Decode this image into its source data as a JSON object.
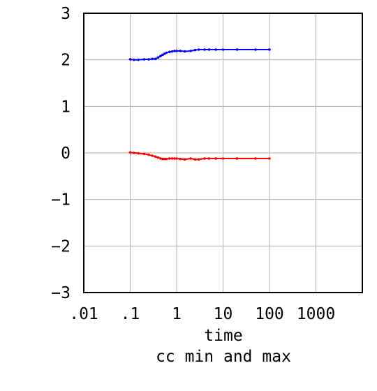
{
  "chart_data": {
    "type": "line",
    "title": "cc min and max",
    "xlabel": "time",
    "ylabel": "",
    "xscale": "log",
    "xlim": [
      0.01,
      10000
    ],
    "ylim": [
      -3,
      3
    ],
    "grid": true,
    "legend": "none",
    "xticks": [
      0.01,
      0.1,
      1,
      10,
      100,
      1000
    ],
    "xtick_labels": [
      ".01",
      ".1",
      "1",
      "10",
      "100",
      "1000"
    ],
    "yticks": [
      3,
      2,
      1,
      0,
      -1,
      -2,
      -3
    ],
    "ytick_labels": [
      "3",
      "2",
      "1",
      "0",
      "−1",
      "−2",
      "−3"
    ],
    "series": [
      {
        "color": "#0000ff",
        "x": [
          0.1,
          0.12,
          0.15,
          0.2,
          0.25,
          0.3,
          0.35,
          0.4,
          0.45,
          0.5,
          0.55,
          0.6,
          0.7,
          0.8,
          0.9,
          1.0,
          1.2,
          1.5,
          2.0,
          2.5,
          3.0,
          4.0,
          5.0,
          7.0,
          10,
          20,
          50,
          100
        ],
        "y": [
          2.01,
          2.0,
          2.0,
          2.01,
          2.01,
          2.02,
          2.02,
          2.05,
          2.08,
          2.11,
          2.13,
          2.15,
          2.17,
          2.18,
          2.19,
          2.19,
          2.19,
          2.18,
          2.19,
          2.21,
          2.22,
          2.22,
          2.22,
          2.22,
          2.22,
          2.22,
          2.22,
          2.22
        ]
      },
      {
        "color": "#ff0000",
        "x": [
          0.1,
          0.12,
          0.15,
          0.2,
          0.25,
          0.3,
          0.35,
          0.4,
          0.45,
          0.5,
          0.55,
          0.6,
          0.7,
          0.8,
          0.9,
          1.0,
          1.2,
          1.5,
          2.0,
          2.5,
          3.0,
          4.0,
          5.0,
          7.0,
          10,
          20,
          50,
          100
        ],
        "y": [
          0.01,
          0.0,
          -0.01,
          -0.02,
          -0.04,
          -0.06,
          -0.08,
          -0.1,
          -0.12,
          -0.13,
          -0.13,
          -0.13,
          -0.12,
          -0.12,
          -0.12,
          -0.12,
          -0.13,
          -0.14,
          -0.12,
          -0.14,
          -0.14,
          -0.12,
          -0.12,
          -0.12,
          -0.12,
          -0.12,
          -0.12,
          -0.12
        ]
      }
    ]
  }
}
